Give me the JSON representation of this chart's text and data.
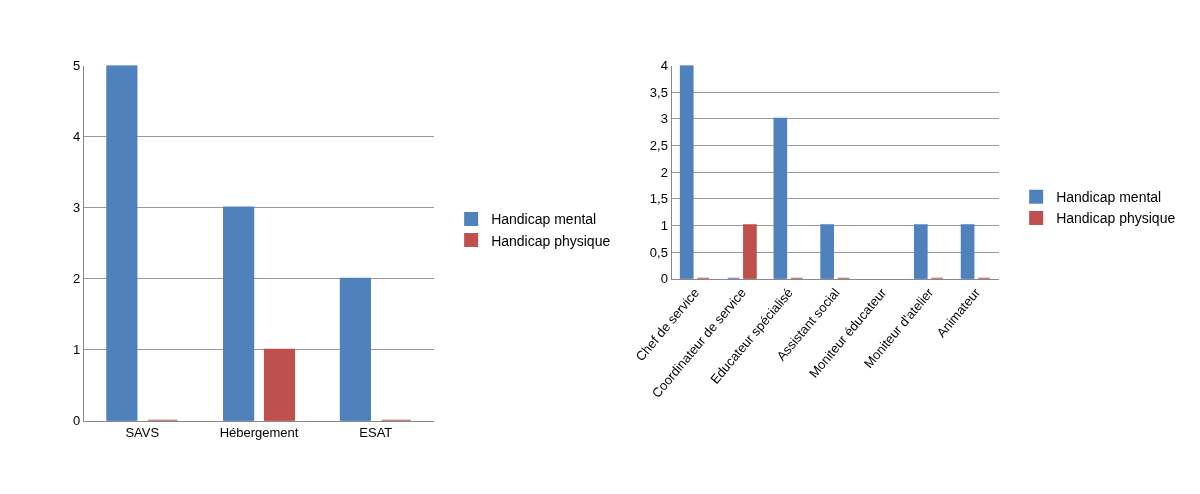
{
  "chart_data": [
    {
      "type": "bar",
      "categories": [
        "SAVS",
        "Hébergement",
        "ESAT"
      ],
      "series": [
        {
          "name": "Handicap mental",
          "color": "#4f81bd",
          "values": [
            5,
            3,
            2
          ]
        },
        {
          "name": "Handicap physique",
          "color": "#c0504d",
          "values": [
            0,
            1,
            0
          ]
        }
      ],
      "ylim": [
        0,
        5
      ],
      "yticks": [
        0,
        1,
        2,
        3,
        4,
        5
      ],
      "grid": "y",
      "legend": "right"
    },
    {
      "type": "bar",
      "categories": [
        "Chef de service",
        "Coordinateur de service",
        "Educateur spécialisé",
        "Assistant social",
        "Moniteur éducateur",
        "Moniteur d'atelier",
        "Animateur"
      ],
      "series": [
        {
          "name": "Handicap mental",
          "color": "#4f81bd",
          "values": [
            4,
            0,
            3,
            1,
            null,
            1,
            1
          ]
        },
        {
          "name": "Handicap physique",
          "color": "#c0504d",
          "values": [
            0,
            1,
            0,
            0,
            null,
            0,
            0
          ]
        }
      ],
      "ylim": [
        0,
        4
      ],
      "yticks": [
        0,
        {
          "value": 0.5,
          "label": "0,5"
        },
        1,
        {
          "value": 1.5,
          "label": "1,5"
        },
        2,
        {
          "value": 2.5,
          "label": "2,5"
        },
        3,
        {
          "value": 3.5,
          "label": "3,5"
        },
        4
      ],
      "grid": "y",
      "legend": "right"
    }
  ]
}
